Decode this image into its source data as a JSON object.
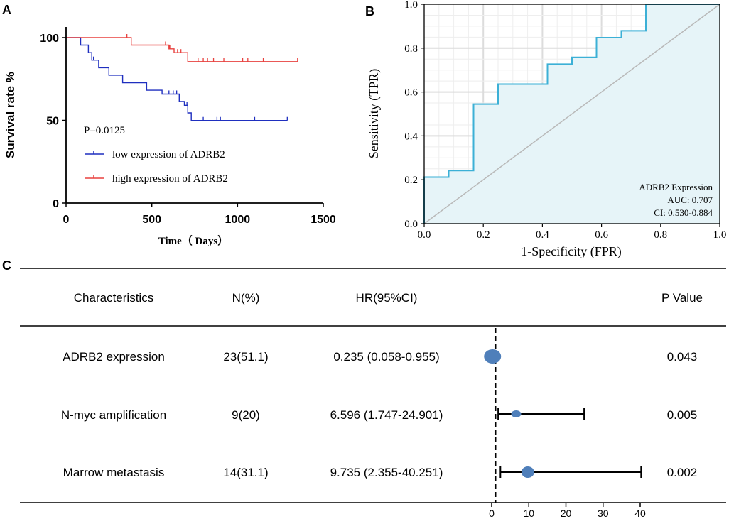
{
  "panels": {
    "a": "A",
    "b": "B",
    "c": "C"
  },
  "chart_data": [
    {
      "type": "line",
      "subtype": "kaplan-meier",
      "title": "",
      "xlabel": "Time（ Days）",
      "ylabel": "Survival rate %",
      "xlim": [
        0,
        1500
      ],
      "ylim": [
        0,
        100
      ],
      "x_ticks": [
        0,
        500,
        1000,
        1500
      ],
      "y_ticks": [
        0,
        50,
        100
      ],
      "annotation": "P=0.0125",
      "series": [
        {
          "name": "low expression of ADRB2",
          "color": "#1f2fbf",
          "steps": [
            [
              0,
              100
            ],
            [
              85,
              100
            ],
            [
              85,
              95.5
            ],
            [
              130,
              95.5
            ],
            [
              130,
              90.9
            ],
            [
              150,
              90.9
            ],
            [
              150,
              86.4
            ],
            [
              190,
              86.4
            ],
            [
              190,
              81.8
            ],
            [
              250,
              81.8
            ],
            [
              250,
              77.3
            ],
            [
              330,
              77.3
            ],
            [
              330,
              72.7
            ],
            [
              470,
              72.7
            ],
            [
              470,
              68.2
            ],
            [
              560,
              68.2
            ],
            [
              560,
              65.9
            ],
            [
              660,
              65.9
            ],
            [
              660,
              61.4
            ],
            [
              690,
              61.4
            ],
            [
              690,
              59.1
            ],
            [
              710,
              59.1
            ],
            [
              710,
              54.5
            ],
            [
              730,
              54.5
            ],
            [
              730,
              49.9
            ],
            [
              1290,
              49.9
            ]
          ],
          "censored": [
            [
              160,
              86.4
            ],
            [
              600,
              65.9
            ],
            [
              625,
              65.9
            ],
            [
              645,
              65.9
            ],
            [
              705,
              59.1
            ],
            [
              800,
              49.9
            ],
            [
              880,
              49.9
            ],
            [
              900,
              49.9
            ],
            [
              1100,
              49.9
            ],
            [
              1290,
              49.9
            ]
          ]
        },
        {
          "name": "high expression of ADRB2",
          "color": "#e8413e",
          "steps": [
            [
              0,
              100
            ],
            [
              380,
              100
            ],
            [
              380,
              95.5
            ],
            [
              600,
              95.5
            ],
            [
              600,
              93.2
            ],
            [
              630,
              93.2
            ],
            [
              630,
              90.9
            ],
            [
              710,
              90.9
            ],
            [
              710,
              85.5
            ],
            [
              1350,
              85.5
            ]
          ],
          "censored": [
            [
              355,
              100
            ],
            [
              580,
              95.5
            ],
            [
              605,
              93.2
            ],
            [
              650,
              90.9
            ],
            [
              670,
              90.9
            ],
            [
              770,
              85.5
            ],
            [
              800,
              85.5
            ],
            [
              825,
              85.5
            ],
            [
              860,
              85.5
            ],
            [
              920,
              85.5
            ],
            [
              1030,
              85.5
            ],
            [
              1060,
              85.5
            ],
            [
              1150,
              85.5
            ],
            [
              1350,
              85.5
            ]
          ]
        }
      ]
    },
    {
      "type": "line",
      "subtype": "roc",
      "title": "",
      "xlabel": "1-Specificity (FPR)",
      "ylabel": "Sensitivity (TPR)",
      "xlim": [
        0,
        1
      ],
      "ylim": [
        0,
        1
      ],
      "x_ticks": [
        "0.0",
        "0.2",
        "0.4",
        "0.6",
        "0.8",
        "1.0"
      ],
      "y_ticks": [
        "0.0",
        "0.2",
        "0.4",
        "0.6",
        "0.8",
        "1.0"
      ],
      "grid": true,
      "series": [
        {
          "name": "ADRB2 Expression",
          "color": "#3cb0d6",
          "points": [
            [
              0,
              0
            ],
            [
              0,
              0.212
            ],
            [
              0.083,
              0.212
            ],
            [
              0.083,
              0.242
            ],
            [
              0.167,
              0.242
            ],
            [
              0.167,
              0.545
            ],
            [
              0.25,
              0.545
            ],
            [
              0.25,
              0.636
            ],
            [
              0.417,
              0.636
            ],
            [
              0.417,
              0.727
            ],
            [
              0.5,
              0.727
            ],
            [
              0.5,
              0.758
            ],
            [
              0.583,
              0.758
            ],
            [
              0.583,
              0.848
            ],
            [
              0.667,
              0.848
            ],
            [
              0.667,
              0.879
            ],
            [
              0.75,
              0.879
            ],
            [
              0.75,
              1.0
            ],
            [
              1.0,
              1.0
            ]
          ]
        },
        {
          "name": "reference",
          "color": "#b9b9b9",
          "points": [
            [
              0,
              0
            ],
            [
              1,
              1
            ]
          ]
        }
      ],
      "legend": {
        "title": "ADRB2 Expression",
        "auc": "AUC: 0.707",
        "ci": "CI: 0.530-0.884"
      }
    },
    {
      "type": "table",
      "subtype": "forest-plot",
      "headers": {
        "characteristics": "Characteristics",
        "n": "N(%)",
        "hr": "HR(95%CI)",
        "p": "P Value"
      },
      "rows": [
        {
          "characteristic": "ADRB2 expression",
          "n": "23(51.1)",
          "hr_text": "0.235 (0.058-0.955)",
          "p": "0.043",
          "hr": 0.235,
          "lo": 0.058,
          "hi": 0.955,
          "marker": "large"
        },
        {
          "characteristic": "N-myc amplification",
          "n": "9(20)",
          "hr_text": "6.596 (1.747-24.901)",
          "p": "0.005",
          "hr": 6.596,
          "lo": 1.747,
          "hi": 24.901,
          "marker": "small"
        },
        {
          "characteristic": "Marrow metastasis",
          "n": "14(31.1)",
          "hr_text": "9.735 (2.355-40.251)",
          "p": "0.002",
          "hr": 9.735,
          "lo": 2.355,
          "hi": 40.251,
          "marker": "medium"
        }
      ],
      "xlim": [
        0,
        40
      ],
      "x_ticks": [
        0,
        10,
        20,
        30,
        40
      ],
      "reference_line": 1,
      "marker_color": "#4f7fba"
    }
  ]
}
